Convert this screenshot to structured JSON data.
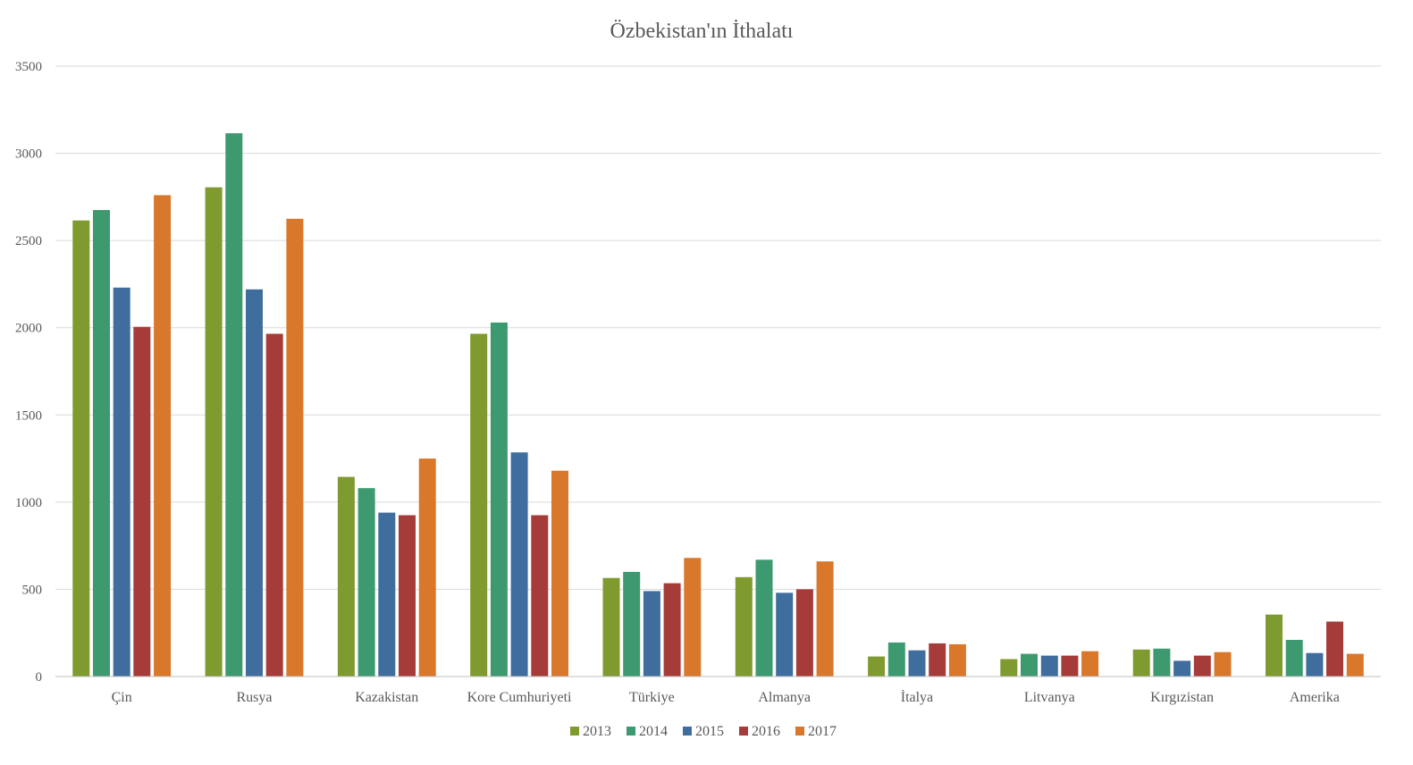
{
  "chart_data": {
    "type": "bar",
    "title": "Özbekistan'ın İthalatı",
    "xlabel": "",
    "ylabel": "",
    "ylim": [
      0,
      3500
    ],
    "yticks": [
      0,
      500,
      1000,
      1500,
      2000,
      2500,
      3000,
      3500
    ],
    "grid": true,
    "legend_position": "bottom",
    "categories": [
      "Çin",
      "Rusya",
      "Kazakistan",
      "Kore Cumhuriyeti",
      "Türkiye",
      "Almanya",
      "İtalya",
      "Litvanya",
      "Kırgızistan",
      "Amerika"
    ],
    "series": [
      {
        "name": "2013",
        "color": "#7f9a2e",
        "values": [
          2615,
          2805,
          1145,
          1965,
          565,
          570,
          115,
          100,
          155,
          355
        ]
      },
      {
        "name": "2014",
        "color": "#3d9a70",
        "values": [
          2675,
          3115,
          1080,
          2030,
          600,
          670,
          195,
          130,
          160,
          210
        ]
      },
      {
        "name": "2015",
        "color": "#3f6e9e",
        "values": [
          2230,
          2220,
          940,
          1285,
          490,
          480,
          150,
          120,
          90,
          135
        ]
      },
      {
        "name": "2016",
        "color": "#a63c3a",
        "values": [
          2005,
          1965,
          925,
          925,
          535,
          500,
          190,
          120,
          120,
          315
        ]
      },
      {
        "name": "2017",
        "color": "#d9772b",
        "values": [
          2760,
          2625,
          1250,
          1180,
          680,
          660,
          185,
          145,
          140,
          130
        ]
      }
    ]
  }
}
